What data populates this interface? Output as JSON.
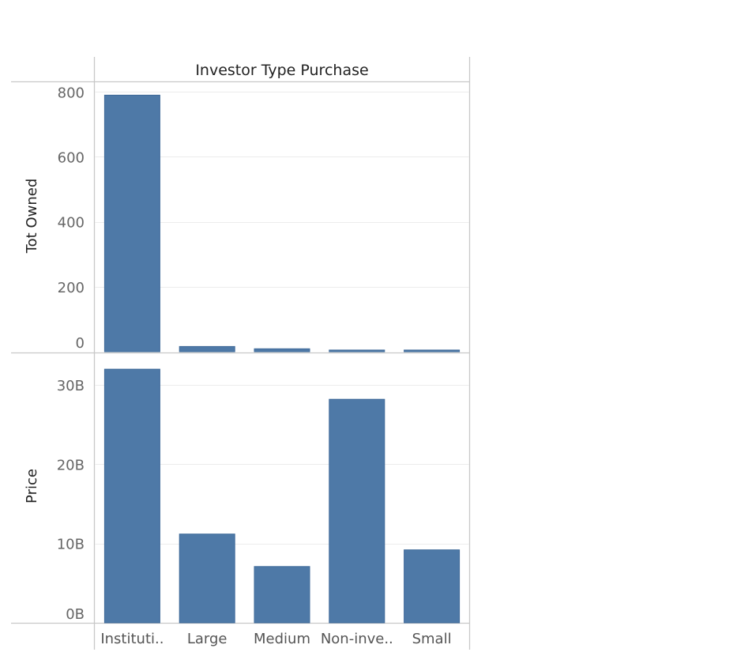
{
  "chart_data": {
    "type": "bar",
    "header": "Investor Type Purchase",
    "categories": [
      "Instituti..",
      "Large",
      "Medium",
      "Non-inve..",
      "Small"
    ],
    "bar_color": "#4e79a7",
    "grid": true,
    "panels": [
      {
        "ylabel": "Tot Owned",
        "ylim": [
          0,
          830
        ],
        "ticks": [
          0,
          200,
          400,
          600,
          800
        ],
        "tick_labels": [
          "0",
          "200",
          "400",
          "600",
          "800"
        ],
        "values": [
          790,
          16,
          9,
          5,
          5
        ]
      },
      {
        "ylabel": "Price",
        "ylim": [
          0,
          34000000000
        ],
        "ticks": [
          0,
          10000000000,
          20000000000,
          30000000000
        ],
        "tick_labels": [
          "0B",
          "10B",
          "20B",
          "30B"
        ],
        "values": [
          32000000000,
          11200000000,
          7100000000,
          28200000000,
          9200000000
        ]
      }
    ]
  }
}
